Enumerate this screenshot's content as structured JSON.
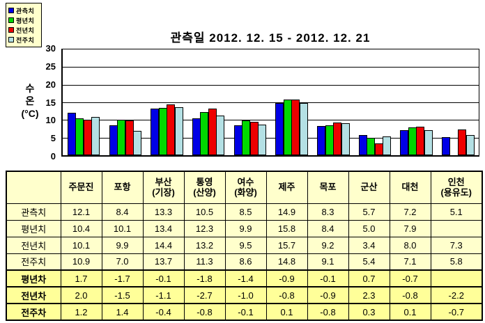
{
  "title": "관측일 2012. 12. 15 - 2012. 12. 21",
  "y_axis": {
    "label": "수\n온\n(°C)",
    "ticks": [
      "30",
      "25",
      "20",
      "15",
      "10",
      "5",
      "0"
    ]
  },
  "chart_data": {
    "type": "bar",
    "title": "관측일 2012. 12. 15 - 2012. 12. 21",
    "xlabel": "",
    "ylabel": "수온(°C)",
    "ylim": [
      0,
      30
    ],
    "ytick_step": 5,
    "grid": true,
    "legend_position": "top-left",
    "categories": [
      "주문진",
      "포항",
      "부산(기장)",
      "통영(산양)",
      "여수(화양)",
      "제주",
      "목포",
      "군산",
      "대천",
      "인천(용유도)"
    ],
    "series": [
      {
        "name": "관측치",
        "color": "#0000E6",
        "values": [
          12.1,
          8.4,
          13.3,
          10.5,
          8.5,
          14.9,
          8.3,
          5.7,
          7.2,
          5.1
        ]
      },
      {
        "name": "평년치",
        "color": "#00D800",
        "values": [
          10.4,
          10.1,
          13.4,
          12.3,
          9.9,
          15.8,
          8.4,
          5.0,
          7.9,
          null
        ]
      },
      {
        "name": "전년치",
        "color": "#EE0000",
        "values": [
          10.1,
          9.9,
          14.4,
          13.2,
          9.5,
          15.7,
          9.2,
          3.4,
          8.0,
          7.3
        ]
      },
      {
        "name": "전주치",
        "color": "#B4E0E4",
        "values": [
          10.9,
          7.0,
          13.7,
          11.3,
          8.6,
          14.8,
          9.1,
          5.4,
          7.1,
          5.8
        ]
      }
    ]
  },
  "table": {
    "corner_label": "",
    "columns": [
      "주문진",
      "포항",
      "부산\n(기장)",
      "통영\n(산양)",
      "여수\n(화양)",
      "제주",
      "목포",
      "군산",
      "대천",
      "인천\n(용유도)"
    ],
    "rows": [
      {
        "label": "관측치",
        "diff": false,
        "values": [
          "12.1",
          "8.4",
          "13.3",
          "10.5",
          "8.5",
          "14.9",
          "8.3",
          "5.7",
          "7.2",
          "5.1"
        ]
      },
      {
        "label": "평년치",
        "diff": false,
        "values": [
          "10.4",
          "10.1",
          "13.4",
          "12.3",
          "9.9",
          "15.8",
          "8.4",
          "5.0",
          "7.9",
          ""
        ]
      },
      {
        "label": "전년치",
        "diff": false,
        "values": [
          "10.1",
          "9.9",
          "14.4",
          "13.2",
          "9.5",
          "15.7",
          "9.2",
          "3.4",
          "8.0",
          "7.3"
        ]
      },
      {
        "label": "전주치",
        "diff": false,
        "values": [
          "10.9",
          "7.0",
          "13.7",
          "11.3",
          "8.6",
          "14.8",
          "9.1",
          "5.4",
          "7.1",
          "5.8"
        ]
      },
      {
        "label": "평년차",
        "diff": true,
        "values": [
          "1.7",
          "-1.7",
          "-0.1",
          "-1.8",
          "-1.4",
          "-0.9",
          "-0.1",
          "0.7",
          "-0.7",
          ""
        ]
      },
      {
        "label": "전년차",
        "diff": true,
        "values": [
          "2.0",
          "-1.5",
          "-1.1",
          "-2.7",
          "-1.0",
          "-0.8",
          "-0.9",
          "2.3",
          "-0.8",
          "-2.2"
        ]
      },
      {
        "label": "전주차",
        "diff": true,
        "values": [
          "1.2",
          "1.4",
          "-0.4",
          "-0.8",
          "-0.1",
          "0.1",
          "-0.8",
          "0.3",
          "0.1",
          "-0.7"
        ]
      }
    ]
  },
  "colors": {
    "panel_bg": "#FFFFCC",
    "diff_row_bg": "#FFFF99",
    "border": "#000000"
  }
}
